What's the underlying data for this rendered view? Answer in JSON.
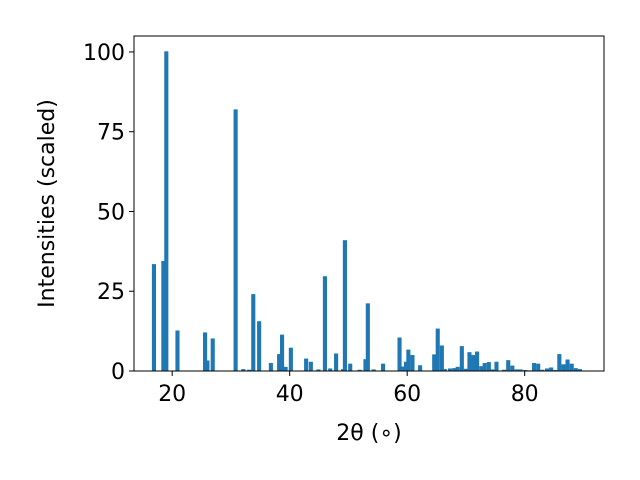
{
  "chart_data": {
    "type": "bar",
    "title": "",
    "xlabel": "2θ (∘)",
    "ylabel": "Intensities (scaled)",
    "xlim": [
      13.5,
      93.5
    ],
    "ylim": [
      0,
      105
    ],
    "xticks": [
      20,
      40,
      60,
      80
    ],
    "yticks": [
      0,
      25,
      50,
      75,
      100
    ],
    "grid": false,
    "legend": "none",
    "bar_width_deg": 0.7,
    "color": "#1f77b4",
    "series": [
      {
        "x": [
          16.9,
          18.5,
          19.0,
          20.9,
          25.6,
          26.0,
          26.9,
          30.8,
          32.1,
          33.1,
          33.8,
          34.8,
          36.8,
          38.2,
          38.7,
          39.3,
          40.2,
          42.8,
          43.6,
          44.9,
          46.0,
          46.9,
          47.9,
          49.1,
          49.4,
          50.3,
          51.9,
          52.9,
          53.3,
          54.3,
          55.9,
          58.7,
          59.2,
          59.8,
          60.2,
          60.9,
          62.2,
          64.6,
          65.2,
          65.9,
          66.4,
          67.3,
          68.0,
          68.6,
          69.3,
          70.0,
          70.6,
          71.3,
          71.9,
          72.6,
          73.2,
          73.9,
          74.5,
          75.2,
          76.5,
          77.2,
          77.9,
          78.6,
          79.3,
          80.1,
          80.8,
          81.6,
          82.3,
          83.0,
          83.8,
          84.5,
          85.2,
          85.9,
          86.6,
          87.3,
          88.0,
          88.7,
          89.4
        ],
        "values": [
          33.5,
          34.5,
          100.2,
          12.7,
          12.1,
          3.3,
          10.2,
          82.0,
          0.6,
          0.4,
          24.1,
          15.6,
          2.5,
          5.3,
          11.4,
          1.3,
          7.3,
          3.9,
          2.9,
          0.5,
          29.7,
          0.8,
          5.5,
          0.6,
          41.0,
          2.3,
          0.4,
          3.7,
          21.2,
          0.5,
          2.3,
          10.5,
          1.4,
          2.9,
          6.7,
          5.0,
          1.8,
          5.2,
          13.3,
          8.0,
          0.6,
          0.8,
          0.9,
          1.3,
          7.8,
          0.7,
          5.9,
          5.0,
          6.1,
          1.5,
          2.5,
          2.8,
          0.5,
          2.9,
          0.4,
          3.4,
          1.7,
          0.5,
          0.5,
          0.3,
          0.2,
          2.5,
          2.3,
          0.4,
          0.8,
          1.1,
          0.3,
          5.3,
          2.1,
          3.6,
          2.3,
          0.9,
          0.6
        ]
      }
    ]
  }
}
